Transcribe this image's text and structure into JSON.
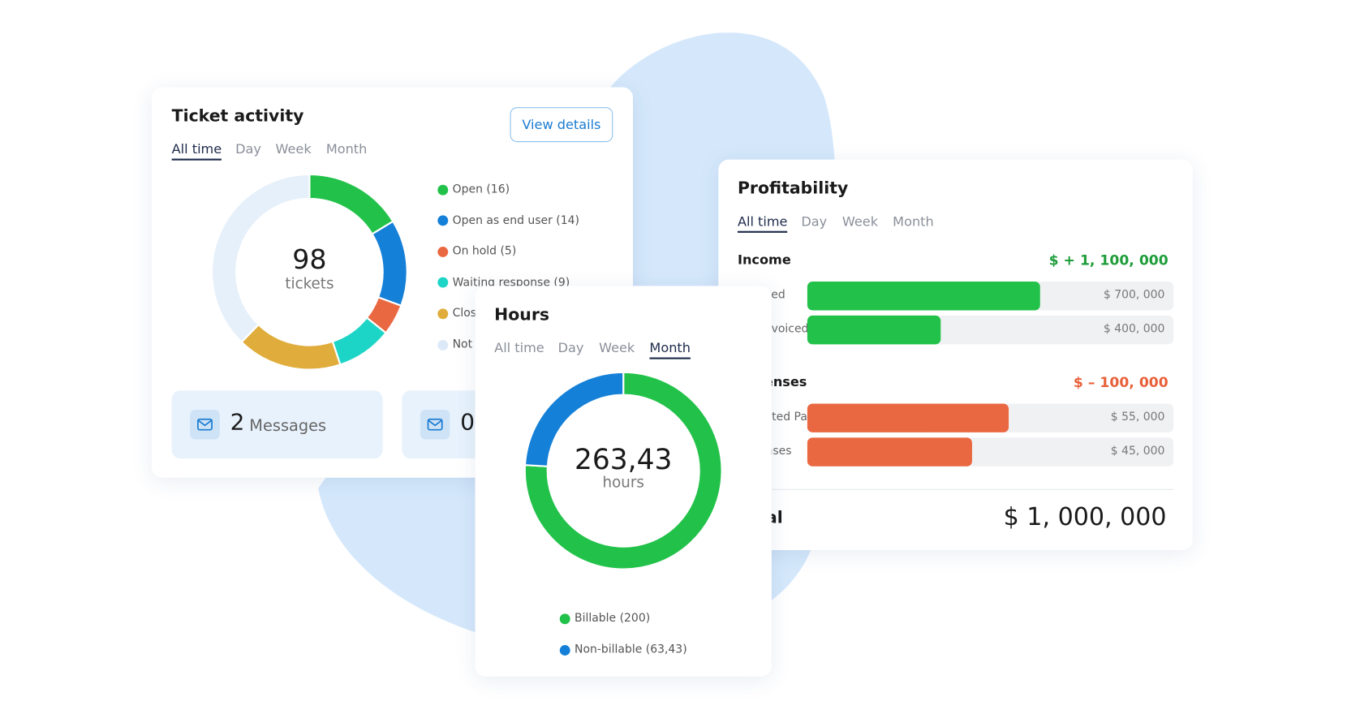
{
  "ticket_activity": {
    "title": "Ticket activity",
    "button": "View details",
    "tabs": [
      "All time",
      "Day",
      "Week",
      "Month"
    ],
    "active_tab": 0,
    "center_value": "98",
    "center_label": "tickets",
    "segments": [
      {
        "label": "Open (16)",
        "value": 16,
        "color": "#22c24a"
      },
      {
        "label": "Open as end user (14)",
        "value": 14,
        "color": "#1580d8"
      },
      {
        "label": "On hold (5)",
        "value": 5,
        "color": "#ea6841"
      },
      {
        "label": "Waiting response (9)",
        "value": 9,
        "color": "#1dd5c6"
      },
      {
        "label": "Clos",
        "value": 17,
        "color": "#e0ad3c"
      },
      {
        "label": "Not",
        "value": 37,
        "color": "#e6f0fa"
      }
    ],
    "stats": [
      {
        "value": "2",
        "label": "Messages"
      },
      {
        "value": "0",
        "label": ""
      }
    ]
  },
  "hours": {
    "title": "Hours",
    "tabs": [
      "All time",
      "Day",
      "Week",
      "Month"
    ],
    "active_tab": 3,
    "center_value": "263,43",
    "center_label": "hours",
    "segments": [
      {
        "label": "Billable (200)",
        "value": 200,
        "color": "#22c24a"
      },
      {
        "label": "Non-billable (63,43)",
        "value": 63.43,
        "color": "#1580d8"
      }
    ]
  },
  "profitability": {
    "title": "Profitability",
    "tabs": [
      "All time",
      "Day",
      "Week",
      "Month"
    ],
    "active_tab": 0,
    "sections": [
      {
        "label": "Income",
        "total": 1100000,
        "total_label": "$ + 1, 100, 000",
        "color": "#22c24a",
        "total_color": "#1f9d3a",
        "rows": [
          {
            "label": "Invoiced",
            "value": 700000,
            "value_label": "$ 700, 000"
          },
          {
            "label": "Not invoiced",
            "value": 400000,
            "value_label": "$ 400, 000"
          }
        ]
      },
      {
        "label": "Expenses",
        "total": 100000,
        "total_label": "$ – 100, 000",
        "color": "#ea6841",
        "total_color": "#e8603a",
        "rows": [
          {
            "label": "Expected Paym.",
            "value": 55000,
            "value_label": "$ 55, 000"
          },
          {
            "label": "Expenses",
            "value": 45000,
            "value_label": "$ 45, 000"
          }
        ]
      }
    ],
    "total_label": "Total",
    "total_value": "$ 1, 000, 000"
  }
}
